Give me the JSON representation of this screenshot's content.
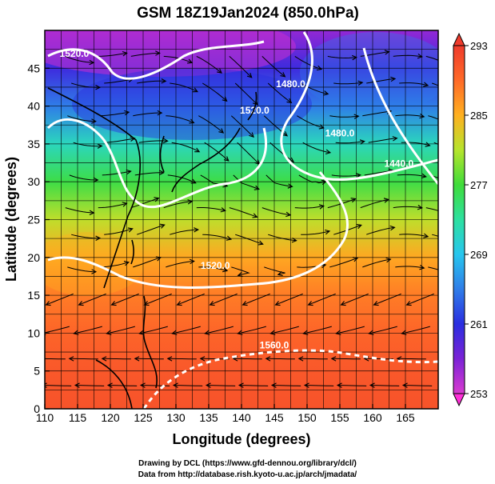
{
  "chart_data": {
    "type": "heatmap",
    "title": "GSM 18Z19Jan2024 (850.0hPa)",
    "xlabel": "Longitude (degrees)",
    "ylabel": "Latitude  (degrees)",
    "xlim": [
      110,
      170
    ],
    "ylim": [
      0,
      50
    ],
    "x_ticks": [
      110,
      115,
      120,
      125,
      130,
      135,
      140,
      145,
      150,
      155,
      160,
      165
    ],
    "y_ticks": [
      0,
      5,
      10,
      15,
      20,
      25,
      30,
      35,
      40,
      45
    ],
    "grid": true,
    "colorbar": {
      "min": 253,
      "max": 293,
      "ticks": [
        253,
        261,
        269,
        277,
        285,
        293
      ],
      "stops": [
        {
          "value": 253,
          "color": "#d93bd0"
        },
        {
          "value": 257,
          "color": "#7b22d6"
        },
        {
          "value": 261,
          "color": "#2a2ee0"
        },
        {
          "value": 265,
          "color": "#2f7de8"
        },
        {
          "value": 269,
          "color": "#27c6ee"
        },
        {
          "value": 273,
          "color": "#2de0a0"
        },
        {
          "value": 277,
          "color": "#3fdc3a"
        },
        {
          "value": 281,
          "color": "#b6e42c"
        },
        {
          "value": 285,
          "color": "#ffb020"
        },
        {
          "value": 289,
          "color": "#ff6a28"
        },
        {
          "value": 293,
          "color": "#ef3b2c"
        }
      ]
    },
    "temperature_profile": [
      {
        "lat": 0,
        "value": 291
      },
      {
        "lat": 5,
        "value": 290.5
      },
      {
        "lat": 10,
        "value": 289.5
      },
      {
        "lat": 15,
        "value": 288
      },
      {
        "lat": 20,
        "value": 285.5
      },
      {
        "lat": 25,
        "value": 281.5
      },
      {
        "lat": 30,
        "value": 276.5
      },
      {
        "lat": 35,
        "value": 271.5
      },
      {
        "lat": 40,
        "value": 265
      },
      {
        "lat": 45,
        "value": 260
      },
      {
        "lat": 50,
        "value": 256
      }
    ],
    "contour_labels": [
      {
        "text": "1520.0",
        "lon": 114.5,
        "lat": 46.5
      },
      {
        "text": "1480.0",
        "lon": 147.5,
        "lat": 42.5
      },
      {
        "text": "1520.0",
        "lon": 142,
        "lat": 39
      },
      {
        "text": "1520.0",
        "lon": 136,
        "lat": 18.5
      },
      {
        "text": "1560.0",
        "lon": 145,
        "lat": 8
      },
      {
        "text": "1480.0",
        "lon": 155,
        "lat": 36
      },
      {
        "text": "1440.0",
        "lon": 164,
        "lat": 32
      }
    ],
    "credits": [
      "Drawing by DCL (https://www.gfd-dennou.org/library/dcl/)",
      "Data from http://database.rish.kyoto-u.ac.jp/arch/jmadata/"
    ]
  }
}
